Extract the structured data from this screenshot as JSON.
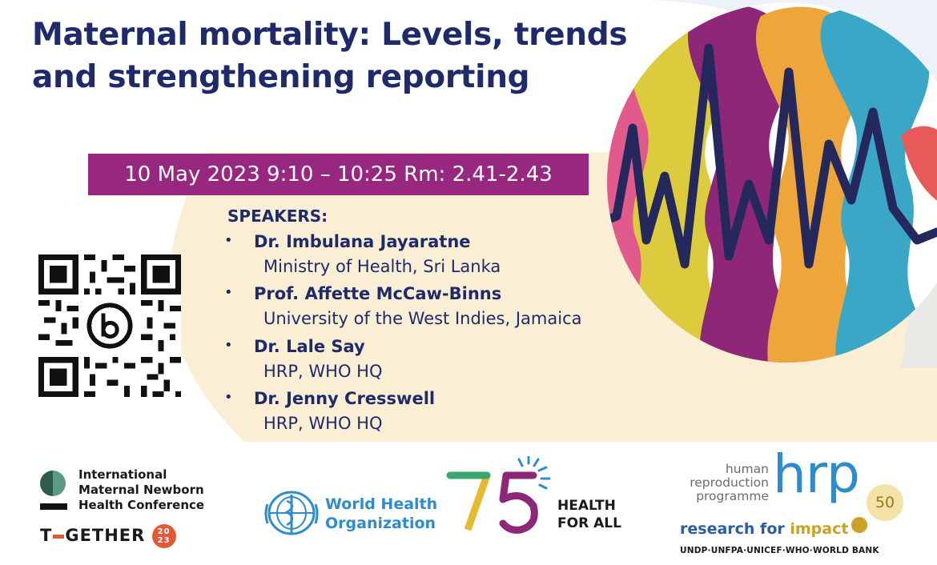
{
  "title": "Maternal mortality: Levels, trends and strengthening reporting",
  "event_info": "10 May 2023 9:10 – 10:25 Rm: 2.41-2.43",
  "speakers_heading": "SPEAKERS:",
  "bullet": "•",
  "speakers": [
    {
      "name": "Dr. Imbulana Jayaratne",
      "affiliation": "Ministry of Health, Sri Lanka"
    },
    {
      "name": "Prof. Affette McCaw-Binns",
      "affiliation": "University of the West Indies, Jamaica"
    },
    {
      "name": "Dr. Lale Say",
      "affiliation": "HRP, WHO HQ"
    },
    {
      "name": "Dr. Jenny Cresswell",
      "affiliation": "HRP, WHO HQ"
    }
  ],
  "footer": {
    "conference": {
      "line1": "International",
      "line2": "Maternal Newborn",
      "line3": "Health Conference",
      "together_part1": "T",
      "together_part2": "GETHER",
      "year_top": "20",
      "year_bottom": "23"
    },
    "who": {
      "line1": "World Health",
      "line2": "Organization"
    },
    "anniversary": {
      "number": "75",
      "line1": "HEALTH",
      "line2": "FOR ALL"
    },
    "hrp": {
      "words": [
        "human",
        "reproduction",
        "programme"
      ],
      "mark": "hrp",
      "fifty": "50",
      "tagline_part1": "research for ",
      "tagline_part2": "impact",
      "partners": "UNDP·UNFPA·UNICEF·WHO·WORLD BANK"
    }
  },
  "colors": {
    "navy": "#1f2a6b",
    "purple_bar": "#97277f",
    "beige": "#faeed5",
    "who_blue": "#2d8ccb",
    "hrp_gold": "#c9a227"
  },
  "icons": {
    "qr": "qr-code-icon",
    "qr_center": "bitly-logo-icon",
    "who_emblem": "who-emblem-icon",
    "sun": "sun-rays-icon",
    "conference_circle": "conference-circle-icon"
  }
}
